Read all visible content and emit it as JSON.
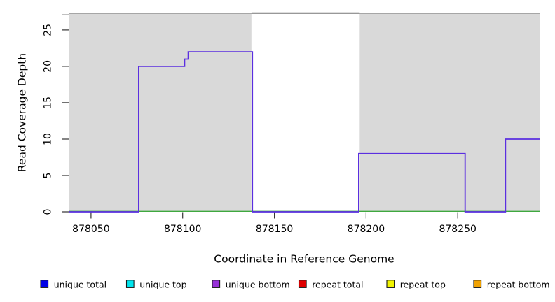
{
  "chart_data": {
    "type": "line",
    "subtype": "step-coverage",
    "title": "",
    "xlabel": "Coordinate in Reference Genome",
    "ylabel": "Read Coverage Depth",
    "xlim": [
      878038,
      878295
    ],
    "ylim": [
      0,
      27.2
    ],
    "x_ticks": [
      878050,
      878100,
      878150,
      878200,
      878250
    ],
    "y_ticks": [
      0,
      5,
      10,
      15,
      20,
      25
    ],
    "grid": false,
    "plot_background": "#D9D9D9",
    "background_regions": [
      {
        "name": "unique-region-left",
        "from": 878038,
        "to": 878137.5,
        "color": "#D9D9D9"
      },
      {
        "name": "repeat-region",
        "from": 878137.5,
        "to": 878196.5,
        "color": "#FFFFFF"
      },
      {
        "name": "unique-region-right",
        "from": 878196.5,
        "to": 878295,
        "color": "#D9D9D9"
      }
    ],
    "series": [
      {
        "name": "coverage-depth-steps",
        "color": "#5B2FE0",
        "steps": [
          {
            "from": 878038,
            "to": 878076,
            "depth": 0
          },
          {
            "from": 878076,
            "to": 878101,
            "depth": 20
          },
          {
            "from": 878101,
            "to": 878103,
            "depth": 21
          },
          {
            "from": 878103,
            "to": 878138,
            "depth": 22
          },
          {
            "from": 878138,
            "to": 878196,
            "depth": 0
          },
          {
            "from": 878196,
            "to": 878254,
            "depth": 8
          },
          {
            "from": 878254,
            "to": 878276,
            "depth": 0
          },
          {
            "from": 878276,
            "to": 878295,
            "depth": 10
          }
        ]
      },
      {
        "name": "zero-baseline",
        "color": "#3FA83F",
        "y": 0
      }
    ],
    "legend_position": "bottom",
    "legend": [
      {
        "label": "unique total",
        "color": "#0000E6"
      },
      {
        "label": "unique top",
        "color": "#00E5EE"
      },
      {
        "label": "unique bottom",
        "color": "#9730D8"
      },
      {
        "label": "repeat total",
        "color": "#DF0000"
      },
      {
        "label": "repeat top",
        "color": "#F2F500"
      },
      {
        "label": "repeat bottom",
        "color": "#F0A202"
      }
    ]
  }
}
